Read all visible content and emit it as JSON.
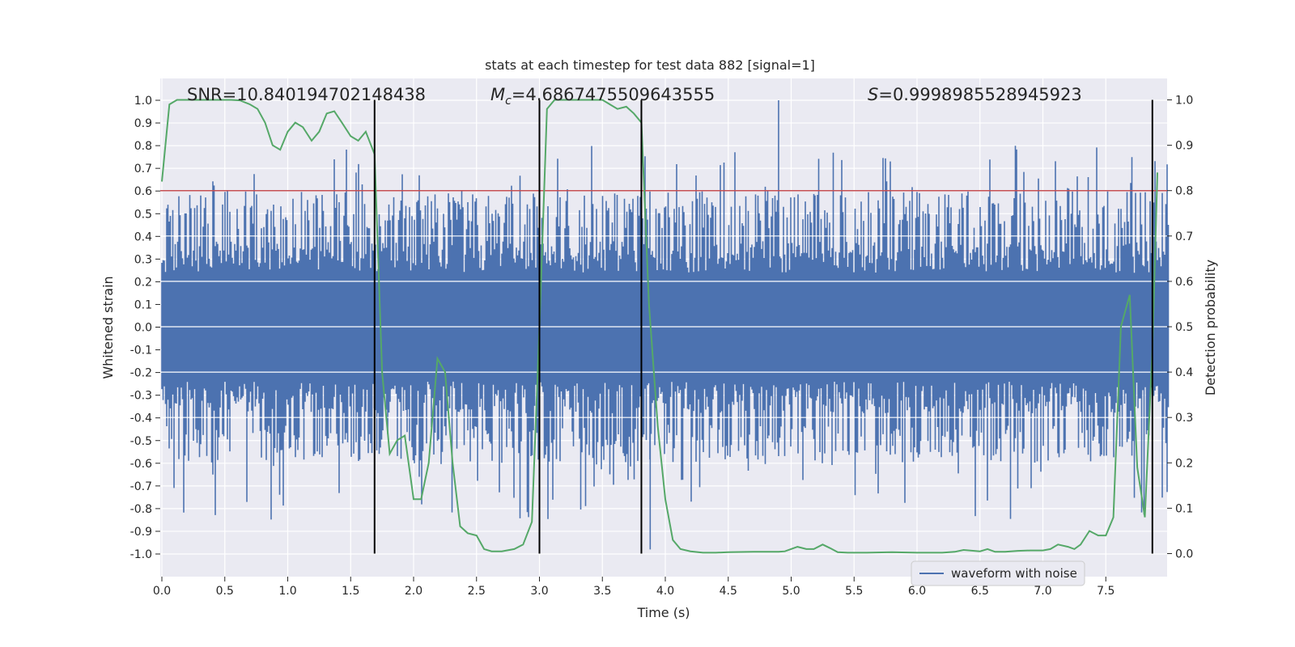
{
  "chart_data": {
    "type": "line",
    "title": "stats at each timestep for test data 882 [signal=1]",
    "xlabel": "Time (s)",
    "ylabel": "Whitened strain",
    "y2label": "Detection probability",
    "xlim": [
      0,
      8
    ],
    "ylim": [
      -1.08,
      1.1
    ],
    "y2lim": [
      -0.047,
      1.03
    ],
    "x_ticks": [
      "0.0",
      "0.5",
      "1.0",
      "1.5",
      "2.0",
      "2.5",
      "3.0",
      "3.5",
      "4.0",
      "4.5",
      "5.0",
      "5.5",
      "6.0",
      "6.5",
      "7.0",
      "7.5"
    ],
    "y_ticks": [
      "1.0",
      "0.9",
      "0.8",
      "0.7",
      "0.6",
      "0.5",
      "0.4",
      "0.3",
      "0.2",
      "0.1",
      "0.0",
      "-0.1",
      "-0.2",
      "-0.3",
      "-0.4",
      "-0.5",
      "-0.6",
      "-0.7",
      "-0.8",
      "-0.9",
      "-1.0"
    ],
    "y2_ticks": [
      "1.0",
      "0.9",
      "0.8",
      "0.7",
      "0.6",
      "0.5",
      "0.4",
      "0.3",
      "0.2",
      "0.1",
      "0.0"
    ],
    "annotations": {
      "snr": "SNR=10.840194702148438",
      "mc_symbol": "M",
      "mc_sub": "c",
      "mc_value": "=4.6867475509643555",
      "s_symbol": "S",
      "s_value": "=0.9998985528945923"
    },
    "legend": {
      "label": "waveform with noise",
      "position": "lower-right"
    },
    "threshold": {
      "y2": 0.8,
      "color": "#c44e52"
    },
    "vlines": [
      1.69,
      3.0,
      3.81,
      7.87
    ],
    "series": [
      {
        "name": "waveform with noise",
        "type": "noise",
        "color": "#4c72b0",
        "core_upper_tilde": 0.38,
        "core_lower_tilde": -0.38,
        "typical_peak": 0.55,
        "max_peak": 1.0,
        "min_trough": -0.98
      },
      {
        "type": "line",
        "axis": "y2",
        "color": "#55a868",
        "x": [
          0.0,
          0.06,
          0.12,
          0.25,
          0.4,
          0.55,
          0.62,
          0.7,
          0.76,
          0.82,
          0.88,
          0.94,
          1.0,
          1.06,
          1.12,
          1.19,
          1.25,
          1.31,
          1.37,
          1.43,
          1.5,
          1.56,
          1.62,
          1.69,
          1.75,
          1.81,
          1.87,
          1.93,
          2.0,
          2.06,
          2.12,
          2.19,
          2.25,
          2.31,
          2.37,
          2.43,
          2.5,
          2.56,
          2.62,
          2.7,
          2.8,
          2.87,
          2.94,
          3.0,
          3.06,
          3.12,
          3.2,
          3.3,
          3.4,
          3.5,
          3.56,
          3.62,
          3.69,
          3.75,
          3.81,
          3.87,
          3.94,
          4.0,
          4.06,
          4.12,
          4.2,
          4.3,
          4.4,
          4.5,
          4.7,
          4.9,
          4.95,
          5.05,
          5.12,
          5.18,
          5.25,
          5.31,
          5.37,
          5.45,
          5.6,
          5.8,
          6.0,
          6.2,
          6.3,
          6.37,
          6.5,
          6.56,
          6.62,
          6.7,
          6.8,
          6.9,
          7.0,
          7.06,
          7.12,
          7.2,
          7.25,
          7.3,
          7.37,
          7.44,
          7.5,
          7.56,
          7.62,
          7.69,
          7.75,
          7.81,
          7.87,
          7.91
        ],
        "y": [
          0.82,
          0.99,
          1.0,
          1.0,
          1.0,
          1.0,
          0.999,
          0.99,
          0.98,
          0.95,
          0.9,
          0.89,
          0.93,
          0.95,
          0.94,
          0.91,
          0.93,
          0.97,
          0.975,
          0.95,
          0.92,
          0.91,
          0.93,
          0.88,
          0.4,
          0.22,
          0.25,
          0.26,
          0.12,
          0.12,
          0.2,
          0.43,
          0.4,
          0.2,
          0.06,
          0.045,
          0.04,
          0.01,
          0.005,
          0.005,
          0.01,
          0.02,
          0.07,
          0.5,
          0.98,
          1.0,
          1.0,
          1.0,
          1.0,
          1.0,
          0.99,
          0.98,
          0.985,
          0.97,
          0.95,
          0.55,
          0.28,
          0.12,
          0.03,
          0.01,
          0.005,
          0.002,
          0.002,
          0.003,
          0.004,
          0.004,
          0.005,
          0.015,
          0.01,
          0.01,
          0.02,
          0.012,
          0.003,
          0.002,
          0.002,
          0.003,
          0.002,
          0.002,
          0.004,
          0.008,
          0.005,
          0.01,
          0.004,
          0.004,
          0.006,
          0.007,
          0.007,
          0.01,
          0.02,
          0.015,
          0.01,
          0.02,
          0.05,
          0.04,
          0.04,
          0.08,
          0.5,
          0.57,
          0.19,
          0.08,
          0.45,
          0.84
        ]
      }
    ]
  }
}
